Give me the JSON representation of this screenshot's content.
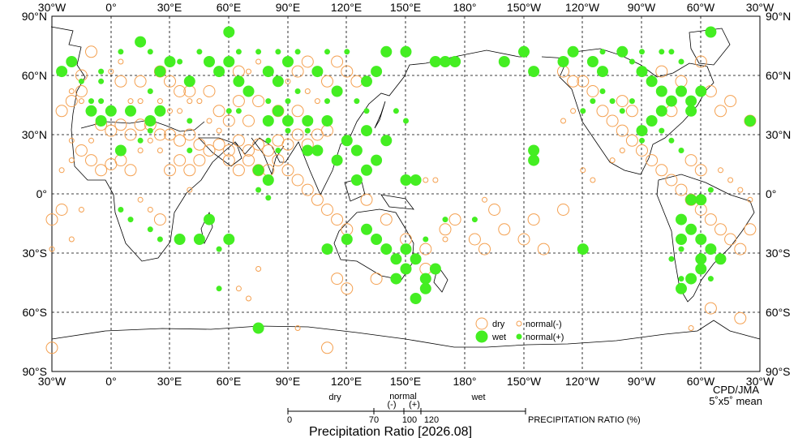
{
  "colors": {
    "dry": "#f4a050",
    "wet": "#44ee22",
    "land": "#000000",
    "grid": "#000000"
  },
  "lon_labels": [
    "30°W",
    "0°",
    "30°E",
    "60°E",
    "90°E",
    "120°E",
    "150°E",
    "180°",
    "150°W",
    "120°W",
    "90°W",
    "60°W",
    "30°W"
  ],
  "lat_labels": [
    "90°N",
    "60°N",
    "30°N",
    "0°",
    "30°S",
    "60°S",
    "90°S"
  ],
  "credit": {
    "agency": "CPD/JMA",
    "resolution": "5˚x5˚ mean"
  },
  "legend": {
    "dry": "dry",
    "wet": "wet",
    "normal_minus": "normal(-)",
    "normal_plus": "normal(+)"
  },
  "ratio_bar": {
    "dry": "dry",
    "normal": "normal",
    "minus": "(-)",
    "plus": "(+)",
    "wet": "wet",
    "ticks": [
      "0",
      "70",
      "100",
      "120"
    ],
    "unit_label": "PRECIPITATION RATIO  (%)",
    "title": "Precipitation Ratio [2026.08]"
  },
  "points": {
    "dry_large": [
      [
        -10,
        72
      ],
      [
        -15,
        60
      ],
      [
        5,
        57
      ],
      [
        15,
        57
      ],
      [
        25,
        62
      ],
      [
        30,
        57
      ],
      [
        35,
        52
      ],
      [
        40,
        52
      ],
      [
        50,
        52
      ],
      [
        65,
        62
      ],
      [
        95,
        62
      ],
      [
        100,
        67
      ],
      [
        110,
        57
      ],
      [
        -5,
        35
      ],
      [
        0,
        32
      ],
      [
        5,
        35
      ],
      [
        10,
        30
      ],
      [
        15,
        35
      ],
      [
        20,
        35
      ],
      [
        25,
        30
      ],
      [
        30,
        30
      ],
      [
        35,
        27
      ],
      [
        40,
        30
      ],
      [
        45,
        25
      ],
      [
        50,
        22
      ],
      [
        55,
        25
      ],
      [
        60,
        22
      ],
      [
        65,
        27
      ],
      [
        70,
        22
      ],
      [
        75,
        25
      ],
      [
        80,
        22
      ],
      [
        85,
        27
      ],
      [
        90,
        25
      ],
      [
        95,
        30
      ],
      [
        100,
        25
      ],
      [
        105,
        30
      ],
      [
        110,
        32
      ],
      [
        -15,
        22
      ],
      [
        -10,
        17
      ],
      [
        -5,
        12
      ],
      [
        0,
        15
      ],
      [
        5,
        17
      ],
      [
        10,
        12
      ],
      [
        30,
        12
      ],
      [
        35,
        17
      ],
      [
        40,
        12
      ],
      [
        45,
        17
      ],
      [
        60,
        17
      ],
      [
        65,
        12
      ],
      [
        70,
        17
      ],
      [
        75,
        12
      ],
      [
        80,
        12
      ],
      [
        85,
        17
      ],
      [
        90,
        12
      ],
      [
        95,
        7
      ],
      [
        100,
        2
      ],
      [
        105,
        -3
      ],
      [
        110,
        -8
      ],
      [
        115,
        -13
      ],
      [
        120,
        -18
      ],
      [
        -25,
        -8
      ],
      [
        25,
        -13
      ],
      [
        130,
        -3
      ],
      [
        140,
        -13
      ],
      [
        150,
        -23
      ],
      [
        160,
        -28
      ],
      [
        170,
        -18
      ],
      [
        175,
        -13
      ],
      [
        -175,
        -23
      ],
      [
        -170,
        -28
      ],
      [
        -160,
        -18
      ],
      [
        -150,
        -23
      ],
      [
        -140,
        -28
      ],
      [
        -130,
        -8
      ],
      [
        -120,
        57
      ],
      [
        -115,
        52
      ],
      [
        -110,
        42
      ],
      [
        -105,
        37
      ],
      [
        -100,
        32
      ],
      [
        -95,
        27
      ],
      [
        -90,
        22
      ],
      [
        -85,
        17
      ],
      [
        -80,
        12
      ],
      [
        -75,
        7
      ],
      [
        -70,
        2
      ],
      [
        -65,
        -3
      ],
      [
        -60,
        -8
      ],
      [
        -55,
        -13
      ],
      [
        -50,
        -18
      ],
      [
        -45,
        -23
      ],
      [
        -40,
        -28
      ],
      [
        -35,
        -18
      ],
      [
        -30,
        -13
      ],
      [
        -70,
        57
      ],
      [
        -60,
        67
      ],
      [
        -55,
        52
      ],
      [
        -50,
        42
      ],
      [
        -45,
        47
      ],
      [
        -35,
        37
      ],
      [
        115,
        -43
      ],
      [
        120,
        -48
      ],
      [
        135,
        -43
      ],
      [
        160,
        -38
      ],
      [
        -55,
        -58
      ],
      [
        -40,
        -63
      ],
      [
        -30,
        -78
      ],
      [
        110,
        -78
      ],
      [
        -15,
        52
      ],
      [
        -20,
        47
      ],
      [
        -25,
        42
      ],
      [
        125,
        57
      ],
      [
        120,
        62
      ],
      [
        115,
        67
      ],
      [
        85,
        42
      ],
      [
        75,
        47
      ],
      [
        65,
        47
      ],
      [
        55,
        42
      ],
      [
        70,
        37
      ],
      [
        60,
        37
      ],
      [
        95,
        42
      ],
      [
        -165,
        -8
      ],
      [
        -145,
        -13
      ],
      [
        -125,
        57
      ],
      [
        -130,
        62
      ],
      [
        -100,
        47
      ],
      [
        -95,
        42
      ],
      [
        -80,
        62
      ],
      [
        -75,
        42
      ],
      [
        -65,
        17
      ],
      [
        -60,
        12
      ]
    ],
    "wet_large": [
      [
        15,
        77
      ],
      [
        60,
        82
      ],
      [
        30,
        67
      ],
      [
        50,
        67
      ],
      [
        -20,
        67
      ],
      [
        -25,
        62
      ],
      [
        25,
        62
      ],
      [
        40,
        57
      ],
      [
        55,
        62
      ],
      [
        60,
        67
      ],
      [
        65,
        57
      ],
      [
        70,
        52
      ],
      [
        80,
        62
      ],
      [
        85,
        57
      ],
      [
        90,
        67
      ],
      [
        105,
        62
      ],
      [
        115,
        52
      ],
      [
        130,
        57
      ],
      [
        135,
        62
      ],
      [
        140,
        72
      ],
      [
        150,
        72
      ],
      [
        165,
        67
      ],
      [
        170,
        67
      ],
      [
        175,
        67
      ],
      [
        -160,
        67
      ],
      [
        -150,
        72
      ],
      [
        -145,
        62
      ],
      [
        -130,
        67
      ],
      [
        -125,
        72
      ],
      [
        -115,
        67
      ],
      [
        -110,
        62
      ],
      [
        -100,
        72
      ],
      [
        -90,
        62
      ],
      [
        -85,
        57
      ],
      [
        -80,
        52
      ],
      [
        -75,
        47
      ],
      [
        -70,
        52
      ],
      [
        -65,
        47
      ],
      [
        -60,
        52
      ],
      [
        -65,
        42
      ],
      [
        -80,
        42
      ],
      [
        -85,
        37
      ],
      [
        -90,
        32
      ],
      [
        -55,
        82
      ],
      [
        -10,
        42
      ],
      [
        -5,
        37
      ],
      [
        0,
        42
      ],
      [
        10,
        42
      ],
      [
        20,
        37
      ],
      [
        25,
        42
      ],
      [
        -35,
        37
      ],
      [
        80,
        37
      ],
      [
        85,
        42
      ],
      [
        90,
        37
      ],
      [
        100,
        37
      ],
      [
        110,
        37
      ],
      [
        120,
        27
      ],
      [
        125,
        22
      ],
      [
        130,
        32
      ],
      [
        140,
        27
      ],
      [
        135,
        17
      ],
      [
        130,
        12
      ],
      [
        125,
        7
      ],
      [
        150,
        7
      ],
      [
        155,
        7
      ],
      [
        105,
        22
      ],
      [
        100,
        22
      ],
      [
        115,
        17
      ],
      [
        80,
        7
      ],
      [
        75,
        12
      ],
      [
        -145,
        17
      ],
      [
        -145,
        22
      ],
      [
        5,
        22
      ],
      [
        35,
        -23
      ],
      [
        45,
        -23
      ],
      [
        50,
        -13
      ],
      [
        60,
        -23
      ],
      [
        130,
        -18
      ],
      [
        135,
        -23
      ],
      [
        140,
        -28
      ],
      [
        145,
        -33
      ],
      [
        150,
        -28
      ],
      [
        155,
        -33
      ],
      [
        150,
        -38
      ],
      [
        145,
        -43
      ],
      [
        -65,
        -3
      ],
      [
        -70,
        -13
      ],
      [
        -65,
        -18
      ],
      [
        -60,
        -23
      ],
      [
        -55,
        -28
      ],
      [
        -50,
        -33
      ],
      [
        -60,
        -38
      ],
      [
        -65,
        -43
      ],
      [
        -70,
        -48
      ],
      [
        -60,
        -33
      ],
      [
        160,
        -43
      ],
      [
        160,
        -48
      ],
      [
        155,
        -53
      ],
      [
        165,
        -38
      ],
      [
        120,
        -23
      ],
      [
        110,
        -28
      ],
      [
        -120,
        -28
      ],
      [
        75,
        -68
      ],
      [
        -60,
        -3
      ],
      [
        -70,
        -23
      ]
    ],
    "dry_small": [
      [
        -20,
        52
      ],
      [
        -15,
        47
      ],
      [
        0,
        62
      ],
      [
        5,
        67
      ],
      [
        10,
        47
      ],
      [
        15,
        47
      ],
      [
        25,
        47
      ],
      [
        30,
        42
      ],
      [
        35,
        42
      ],
      [
        40,
        47
      ],
      [
        50,
        37
      ],
      [
        55,
        32
      ],
      [
        45,
        47
      ],
      [
        70,
        62
      ],
      [
        75,
        67
      ],
      [
        90,
        57
      ],
      [
        100,
        52
      ],
      [
        105,
        47
      ],
      [
        -10,
        27
      ],
      [
        -20,
        27
      ],
      [
        15,
        22
      ],
      [
        20,
        27
      ],
      [
        25,
        22
      ],
      [
        -25,
        12
      ],
      [
        -20,
        17
      ],
      [
        40,
        2
      ],
      [
        -15,
        -8
      ],
      [
        15,
        -3
      ],
      [
        20,
        -8
      ],
      [
        -20,
        -23
      ],
      [
        75,
        -38
      ],
      [
        65,
        -48
      ],
      [
        70,
        -53
      ],
      [
        160,
        7
      ],
      [
        165,
        7
      ],
      [
        170,
        -23
      ],
      [
        -170,
        -3
      ],
      [
        -130,
        37
      ],
      [
        -125,
        42
      ],
      [
        -100,
        22
      ],
      [
        -105,
        17
      ],
      [
        -120,
        12
      ],
      [
        -115,
        7
      ],
      [
        -50,
        12
      ],
      [
        -45,
        7
      ],
      [
        -40,
        2
      ],
      [
        -35,
        -3
      ],
      [
        -30,
        -28
      ],
      [
        95,
        -68
      ],
      [
        -65,
        -68
      ]
    ],
    "wet_small": [
      [
        -5,
        62
      ],
      [
        5,
        72
      ],
      [
        20,
        72
      ],
      [
        35,
        67
      ],
      [
        45,
        72
      ],
      [
        65,
        72
      ],
      [
        75,
        72
      ],
      [
        85,
        72
      ],
      [
        95,
        72
      ],
      [
        110,
        72
      ],
      [
        120,
        72
      ],
      [
        -110,
        72
      ],
      [
        -95,
        67
      ],
      [
        -90,
        72
      ],
      [
        -80,
        72
      ],
      [
        -75,
        72
      ],
      [
        -70,
        67
      ],
      [
        -15,
        57
      ],
      [
        -5,
        57
      ],
      [
        20,
        52
      ],
      [
        -10,
        47
      ],
      [
        -5,
        47
      ],
      [
        40,
        37
      ],
      [
        65,
        42
      ],
      [
        60,
        42
      ],
      [
        80,
        47
      ],
      [
        90,
        47
      ],
      [
        95,
        52
      ],
      [
        110,
        47
      ],
      [
        125,
        47
      ],
      [
        130,
        42
      ],
      [
        145,
        42
      ],
      [
        150,
        37
      ],
      [
        -95,
        47
      ],
      [
        -100,
        42
      ],
      [
        -105,
        47
      ],
      [
        -110,
        52
      ],
      [
        -115,
        47
      ],
      [
        -120,
        42
      ],
      [
        -90,
        27
      ],
      [
        -80,
        32
      ],
      [
        -75,
        27
      ],
      [
        -70,
        22
      ],
      [
        15,
        27
      ],
      [
        20,
        32
      ],
      [
        40,
        22
      ],
      [
        80,
        27
      ],
      [
        85,
        22
      ],
      [
        90,
        32
      ],
      [
        100,
        32
      ],
      [
        75,
        2
      ],
      [
        80,
        -2
      ],
      [
        5,
        -8
      ],
      [
        10,
        -13
      ],
      [
        20,
        -18
      ],
      [
        25,
        -23
      ],
      [
        55,
        -28
      ],
      [
        -175,
        -13
      ],
      [
        -60,
        -3
      ],
      [
        -55,
        2
      ],
      [
        -70,
        -28
      ],
      [
        -75,
        -33
      ],
      [
        -70,
        -43
      ],
      [
        -55,
        -43
      ],
      [
        55,
        -48
      ],
      [
        160,
        -23
      ],
      [
        170,
        -13
      ]
    ]
  }
}
